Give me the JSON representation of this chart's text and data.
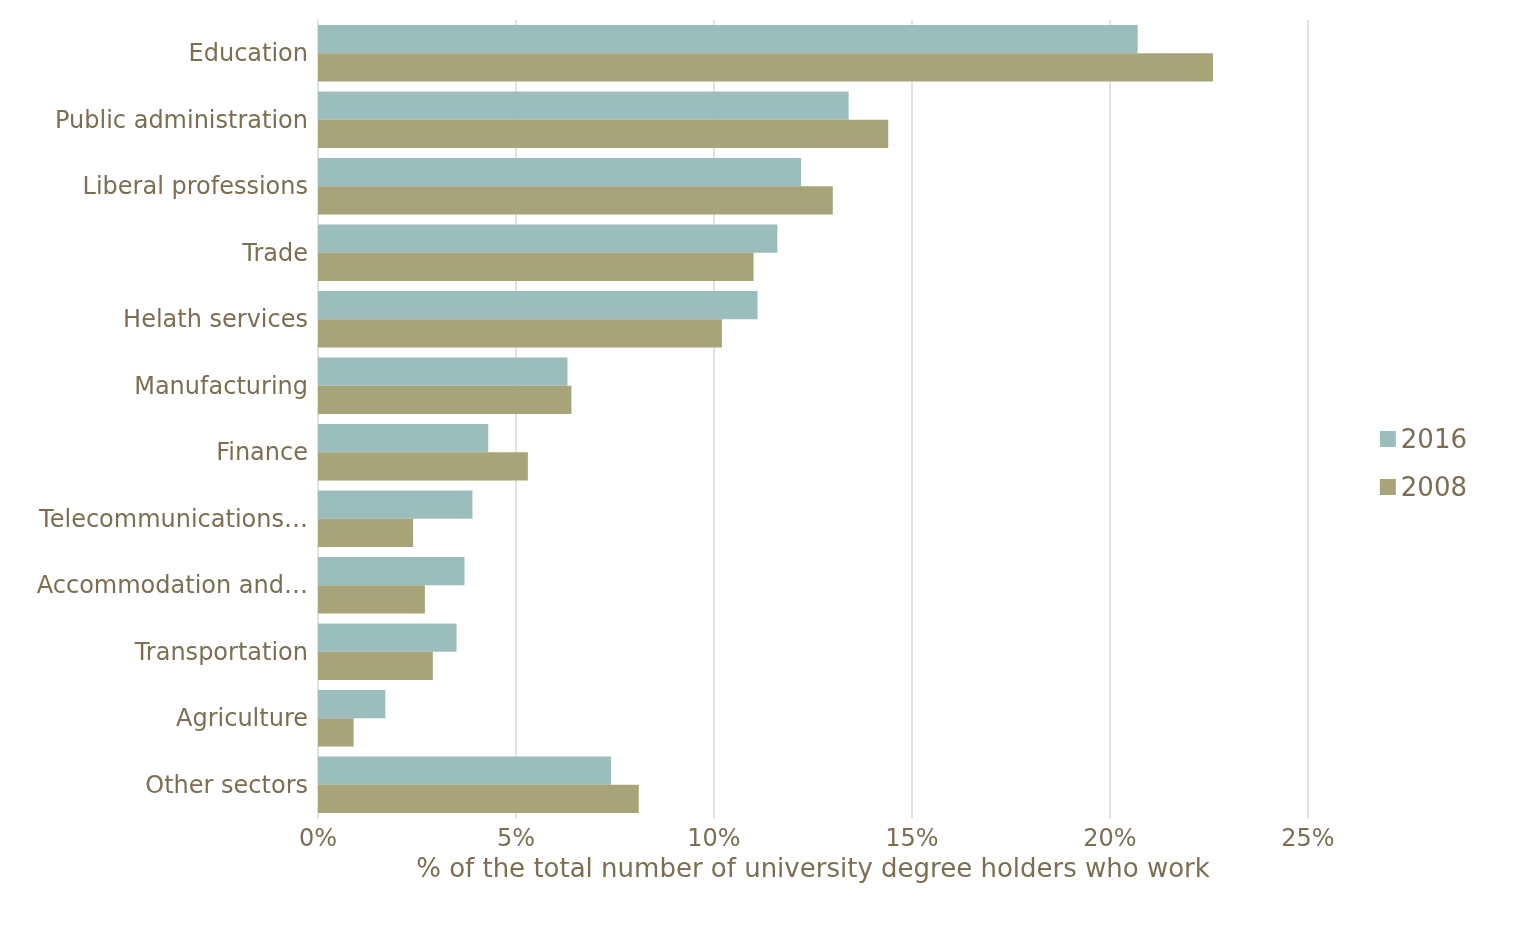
{
  "chart_data": {
    "type": "bar",
    "orientation": "horizontal",
    "categories": [
      "Education",
      "Public administration",
      "Liberal professions",
      "Trade",
      "Helath services",
      "Manufacturing",
      "Finance",
      "Telecommunications…",
      "Accommodation and…",
      "Transportation",
      "Agriculture",
      "Other sectors"
    ],
    "series": [
      {
        "name": "2016",
        "color": "#9bbdbb",
        "values": [
          20.7,
          13.4,
          12.2,
          11.6,
          11.1,
          6.3,
          4.3,
          3.9,
          3.7,
          3.5,
          1.7,
          7.4
        ]
      },
      {
        "name": "2008",
        "color": "#a8a47a",
        "values": [
          22.6,
          14.4,
          13.0,
          11.0,
          10.2,
          6.4,
          5.3,
          2.4,
          2.7,
          2.9,
          0.9,
          8.1
        ]
      }
    ],
    "xlabel": "% of the total number of university degree holders who work",
    "xlim": [
      0,
      25
    ],
    "xticks": [
      {
        "value": 0,
        "label": "0%"
      },
      {
        "value": 5,
        "label": "5%"
      },
      {
        "value": 10,
        "label": "10%"
      },
      {
        "value": 15,
        "label": "15%"
      },
      {
        "value": 20,
        "label": "20%"
      },
      {
        "value": 25,
        "label": "25%"
      }
    ],
    "grid": "x",
    "legend": "right"
  }
}
